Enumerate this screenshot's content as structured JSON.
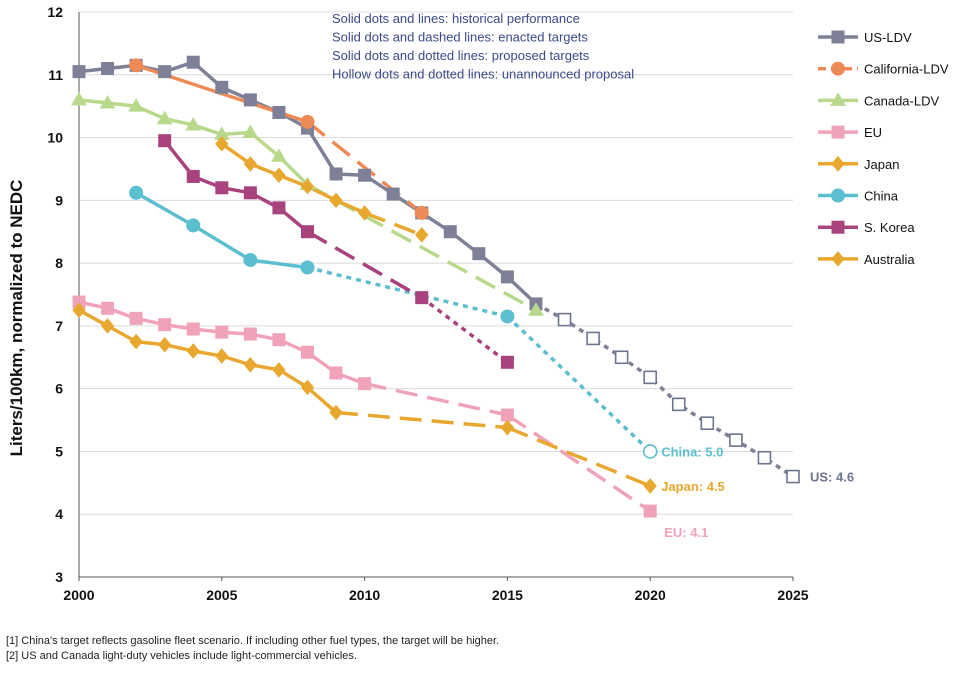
{
  "chart_data": {
    "type": "line",
    "title": "",
    "xlabel": "",
    "ylabel": "Liters/100km, normalized to NEDC",
    "xlim": [
      2000,
      2025
    ],
    "ylim": [
      3,
      12
    ],
    "x_ticks": [
      "2000",
      "2005",
      "2010",
      "2015",
      "2020",
      "2025"
    ],
    "y_ticks": [
      "3",
      "4",
      "5",
      "6",
      "7",
      "8",
      "9",
      "10",
      "11",
      "12"
    ],
    "annotations": [
      "Solid dots and lines: historical performance",
      "Solid dots and dashed lines: enacted targets",
      "Solid dots and dotted lines: proposed targets",
      "Hollow dots and dotted lines: unannounced proposal"
    ],
    "end_labels": [
      {
        "text": "China: 5.0",
        "color": "#5bbfd0",
        "x": 2020,
        "y": 5.0
      },
      {
        "text": "Japan: 4.5",
        "color": "#e8a72e",
        "x": 2020,
        "y": 4.45
      },
      {
        "text": "EU: 4.1",
        "color": "#f0a3b8",
        "x": 2020,
        "y": 4.05
      },
      {
        "text": "US: 4.6",
        "color": "#6e7590",
        "x": 2025,
        "y": 4.6
      }
    ],
    "series": [
      {
        "name": "US-LDV",
        "color": "#7d8096",
        "marker": "square",
        "segments": [
          {
            "style": "solid",
            "filled": true,
            "points": [
              [
                2000,
                11.05
              ],
              [
                2001,
                11.1
              ],
              [
                2002,
                11.15
              ],
              [
                2003,
                11.05
              ],
              [
                2004,
                11.2
              ],
              [
                2005,
                10.8
              ],
              [
                2006,
                10.6
              ],
              [
                2007,
                10.4
              ],
              [
                2008,
                10.15
              ],
              [
                2009,
                9.42
              ],
              [
                2010,
                9.4
              ],
              [
                2011,
                9.1
              ],
              [
                2012,
                8.8
              ],
              [
                2013,
                8.5
              ],
              [
                2014,
                8.15
              ],
              [
                2015,
                7.78
              ],
              [
                2016,
                7.35
              ]
            ]
          },
          {
            "style": "dotted",
            "filled": false,
            "points": [
              [
                2016,
                7.35
              ],
              [
                2017,
                7.1
              ],
              [
                2018,
                6.8
              ],
              [
                2019,
                6.5
              ],
              [
                2020,
                6.18
              ],
              [
                2021,
                5.75
              ],
              [
                2022,
                5.45
              ],
              [
                2023,
                5.18
              ],
              [
                2024,
                4.9
              ],
              [
                2025,
                4.6
              ]
            ]
          }
        ]
      },
      {
        "name": "California-LDV",
        "color": "#ee8a55",
        "marker": "circle",
        "segments": [
          {
            "style": "solid",
            "filled": true,
            "points": [
              [
                2002,
                11.15
              ],
              [
                2008,
                10.25
              ]
            ]
          },
          {
            "style": "dashed",
            "filled": true,
            "points": [
              [
                2008,
                10.25
              ],
              [
                2012,
                8.8
              ]
            ]
          }
        ]
      },
      {
        "name": "Canada-LDV",
        "color": "#b8d98c",
        "marker": "triangle",
        "segments": [
          {
            "style": "solid",
            "filled": true,
            "points": [
              [
                2000,
                10.6
              ],
              [
                2001,
                10.55
              ],
              [
                2002,
                10.5
              ],
              [
                2003,
                10.3
              ],
              [
                2004,
                10.2
              ],
              [
                2005,
                10.05
              ],
              [
                2006,
                10.08
              ],
              [
                2007,
                9.7
              ],
              [
                2008,
                9.25
              ]
            ]
          },
          {
            "style": "dashed",
            "filled": true,
            "points": [
              [
                2008,
                9.25
              ],
              [
                2016,
                7.25
              ]
            ]
          }
        ]
      },
      {
        "name": "EU",
        "color": "#f0a3b8",
        "marker": "square",
        "segments": [
          {
            "style": "solid",
            "filled": true,
            "points": [
              [
                2000,
                7.38
              ],
              [
                2001,
                7.28
              ],
              [
                2002,
                7.12
              ],
              [
                2003,
                7.02
              ],
              [
                2004,
                6.95
              ],
              [
                2005,
                6.9
              ],
              [
                2006,
                6.87
              ],
              [
                2007,
                6.78
              ],
              [
                2008,
                6.58
              ],
              [
                2009,
                6.25
              ],
              [
                2010,
                6.08
              ]
            ]
          },
          {
            "style": "dashed",
            "filled": true,
            "points": [
              [
                2010,
                6.08
              ],
              [
                2015,
                5.58
              ]
            ]
          },
          {
            "style": "dashed",
            "filled": true,
            "points": [
              [
                2015,
                5.58
              ],
              [
                2020,
                4.05
              ]
            ]
          }
        ]
      },
      {
        "name": "Japan",
        "color": "#e8a72e",
        "marker": "diamond",
        "segments": [
          {
            "style": "solid",
            "filled": true,
            "points": [
              [
                2005,
                9.9
              ],
              [
                2006,
                9.58
              ],
              [
                2007,
                9.4
              ],
              [
                2008,
                9.22
              ],
              [
                2009,
                9.0
              ],
              [
                2010,
                8.8
              ]
            ]
          },
          {
            "style": "dashed",
            "filled": true,
            "points": [
              [
                2010,
                8.8
              ],
              [
                2012,
                8.45
              ]
            ]
          },
          {
            "style": "dashed",
            "filled": true,
            "points": [
              [
                2015,
                5.38
              ],
              [
                2020,
                4.45
              ]
            ]
          }
        ]
      },
      {
        "name": "China",
        "color": "#5bbfd0",
        "marker": "circle",
        "segments": [
          {
            "style": "solid",
            "filled": true,
            "points": [
              [
                2002,
                9.12
              ],
              [
                2004,
                8.6
              ],
              [
                2006,
                8.05
              ],
              [
                2008,
                7.93
              ]
            ]
          },
          {
            "style": "dotted",
            "filled": true,
            "points": [
              [
                2008,
                7.93
              ],
              [
                2015,
                7.15
              ]
            ]
          },
          {
            "style": "dotted",
            "filled": false,
            "points": [
              [
                2015,
                7.15
              ],
              [
                2020,
                5.0
              ]
            ]
          }
        ]
      },
      {
        "name": "S. Korea",
        "color": "#a8437e",
        "marker": "square",
        "segments": [
          {
            "style": "solid",
            "filled": true,
            "points": [
              [
                2003,
                9.95
              ],
              [
                2004,
                9.38
              ],
              [
                2005,
                9.2
              ],
              [
                2006,
                9.12
              ],
              [
                2007,
                8.88
              ],
              [
                2008,
                8.5
              ]
            ]
          },
          {
            "style": "dashed",
            "filled": true,
            "points": [
              [
                2008,
                8.5
              ],
              [
                2012,
                7.45
              ]
            ]
          },
          {
            "style": "dotted",
            "filled": true,
            "points": [
              [
                2012,
                7.45
              ],
              [
                2015,
                6.42
              ]
            ]
          }
        ]
      },
      {
        "name": "Australia",
        "color": "#e8a72e",
        "marker": "diamond",
        "segments": [
          {
            "style": "solid",
            "filled": true,
            "points": [
              [
                2000,
                7.25
              ],
              [
                2001,
                7.0
              ],
              [
                2002,
                6.75
              ],
              [
                2003,
                6.7
              ],
              [
                2004,
                6.6
              ],
              [
                2005,
                6.52
              ],
              [
                2006,
                6.38
              ],
              [
                2007,
                6.3
              ],
              [
                2008,
                6.02
              ],
              [
                2009,
                5.62
              ]
            ]
          },
          {
            "style": "dashed",
            "filled": true,
            "points": [
              [
                2009,
                5.62
              ],
              [
                2015,
                5.38
              ]
            ]
          }
        ]
      }
    ]
  },
  "footnotes": [
    "[1] China's target reflects gasoline fleet scenario. If including other fuel types, the target will be higher.",
    "[2] US and Canada light-duty vehicles include light-commercial vehicles."
  ]
}
